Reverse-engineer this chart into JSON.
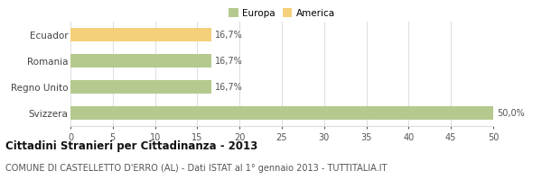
{
  "categories": [
    "Ecuador",
    "Romania",
    "Regno Unito",
    "Svizzera"
  ],
  "values": [
    16.7,
    16.7,
    16.7,
    50.0
  ],
  "bar_colors": [
    "#f5d07a",
    "#b5c98e",
    "#b5c98e",
    "#b5c98e"
  ],
  "bar_labels": [
    "16,7%",
    "16,7%",
    "16,7%",
    "50,0%"
  ],
  "legend_labels": [
    "Europa",
    "America"
  ],
  "legend_colors": [
    "#b5c98e",
    "#f5d07a"
  ],
  "xlim": [
    0,
    50
  ],
  "xticks": [
    0,
    5,
    10,
    15,
    20,
    25,
    30,
    35,
    40,
    45,
    50
  ],
  "title": "Cittadini Stranieri per Cittadinanza - 2013",
  "subtitle": "COMUNE DI CASTELLETTO D'ERRO (AL) - Dati ISTAT al 1° gennaio 2013 - TUTTITALIA.IT",
  "title_fontsize": 8.5,
  "subtitle_fontsize": 7,
  "tick_fontsize": 7,
  "label_fontsize": 7,
  "category_fontsize": 7.5,
  "background_color": "#ffffff",
  "grid_color": "#dddddd"
}
